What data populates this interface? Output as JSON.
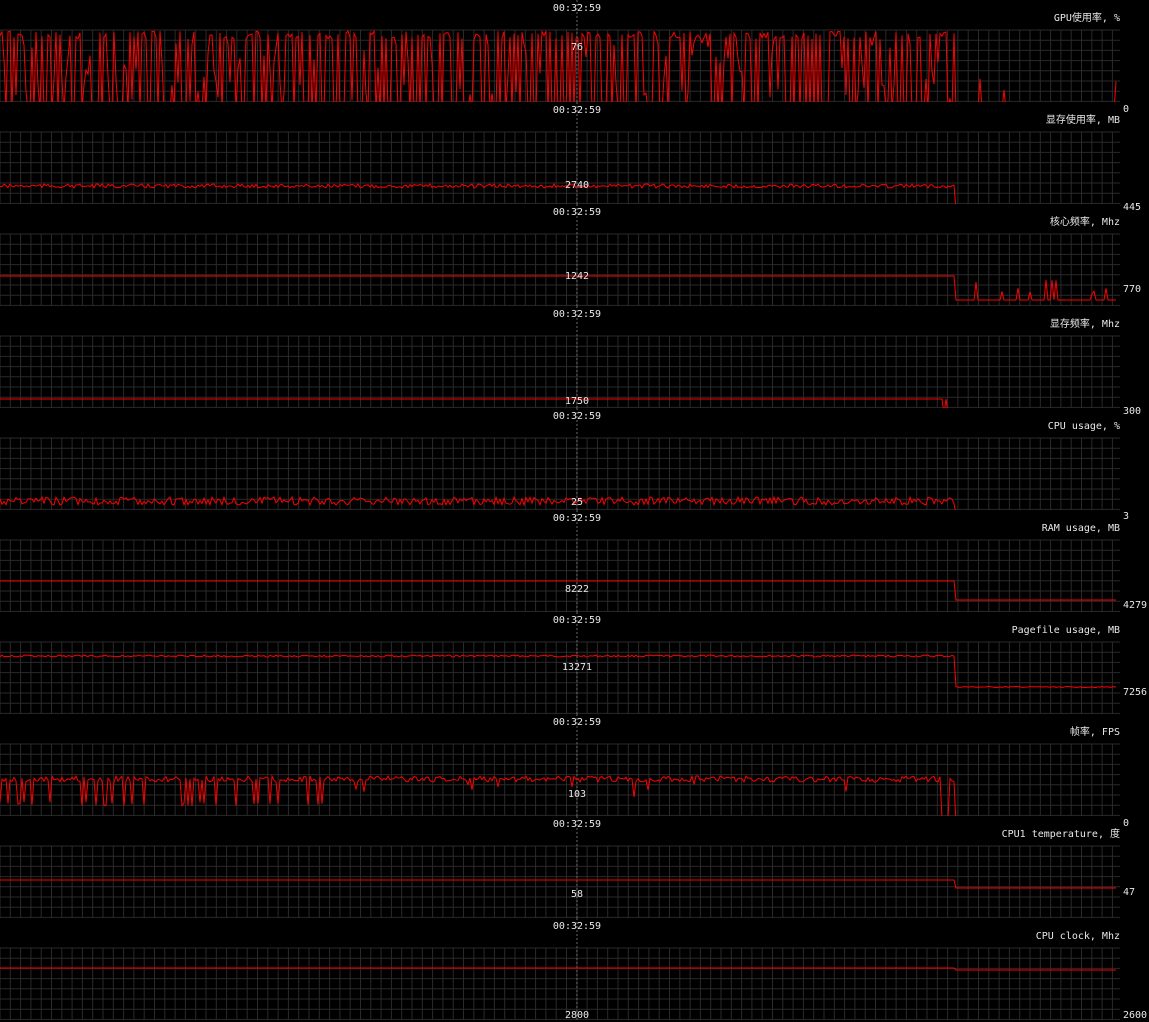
{
  "cursor_time": "00:32:59",
  "colors": {
    "background": "#000000",
    "grid": "#2a2a2a",
    "line": "#ff0000",
    "cursor": "#6a6a6a"
  },
  "panels": [
    {
      "title": "GPU使用率, %",
      "cursor_value": "76",
      "min_value": "0"
    },
    {
      "title": "显存使用率, MB",
      "cursor_value": "2740",
      "min_value": "445"
    },
    {
      "title": "核心频率, Mhz",
      "cursor_value": "1242",
      "min_value": "770"
    },
    {
      "title": "显存频率, Mhz",
      "cursor_value": "1750",
      "min_value": "300"
    },
    {
      "title": "CPU usage, %",
      "cursor_value": "25",
      "min_value": "3"
    },
    {
      "title": "RAM usage, MB",
      "cursor_value": "8222",
      "min_value": "4279"
    },
    {
      "title": "Pagefile usage, MB",
      "cursor_value": "13271",
      "min_value": "7256"
    },
    {
      "title": "帧率, FPS",
      "cursor_value": "103",
      "min_value": "0"
    },
    {
      "title": "CPU1 temperature, 度",
      "cursor_value": "58",
      "min_value": "47"
    },
    {
      "title": "CPU clock, Mhz",
      "cursor_value": "2800",
      "min_value": "2600"
    }
  ]
}
